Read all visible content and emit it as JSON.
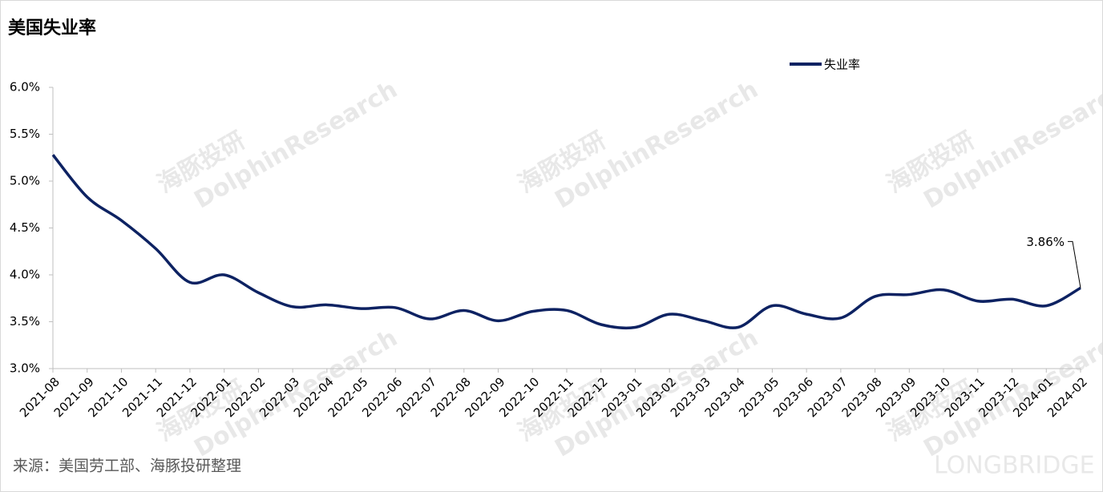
{
  "chart_data": {
    "type": "line",
    "title": "美国失业率",
    "categories": [
      "2021-08",
      "2021-09",
      "2021-10",
      "2021-11",
      "2021-12",
      "2022-01",
      "2022-02",
      "2022-03",
      "2022-04",
      "2022-05",
      "2022-06",
      "2022-07",
      "2022-08",
      "2022-09",
      "2022-10",
      "2022-11",
      "2022-12",
      "2023-01",
      "2023-02",
      "2023-03",
      "2023-04",
      "2023-05",
      "2023-06",
      "2023-07",
      "2023-08",
      "2023-09",
      "2023-10",
      "2023-11",
      "2023-12",
      "2024-01",
      "2024-02"
    ],
    "series": [
      {
        "name": "失业率",
        "color": "#0d2262",
        "values": [
          5.28,
          4.83,
          4.58,
          4.28,
          3.92,
          4.0,
          3.81,
          3.66,
          3.68,
          3.64,
          3.65,
          3.53,
          3.62,
          3.51,
          3.61,
          3.62,
          3.47,
          3.44,
          3.58,
          3.51,
          3.44,
          3.67,
          3.58,
          3.54,
          3.77,
          3.79,
          3.84,
          3.72,
          3.74,
          3.67,
          3.86
        ],
        "value_labels": {
          "30": "3.86%"
        }
      }
    ],
    "ylim": [
      3.0,
      6.0
    ],
    "yticks": [
      {
        "value": 3.0,
        "label": "3.0%"
      },
      {
        "value": 3.5,
        "label": "3.5%"
      },
      {
        "value": 4.0,
        "label": "4.0%"
      },
      {
        "value": 4.5,
        "label": "4.5%"
      },
      {
        "value": 5.0,
        "label": "5.0%"
      },
      {
        "value": 5.5,
        "label": "5.5%"
      },
      {
        "value": 6.0,
        "label": "6.0%"
      }
    ],
    "source": "来源：美国劳工部、海豚投研整理",
    "watermarks": [
      "海豚投研",
      "DolphinResearch",
      "LONGBRIDGE"
    ],
    "legend": "top-right",
    "grid": false
  }
}
